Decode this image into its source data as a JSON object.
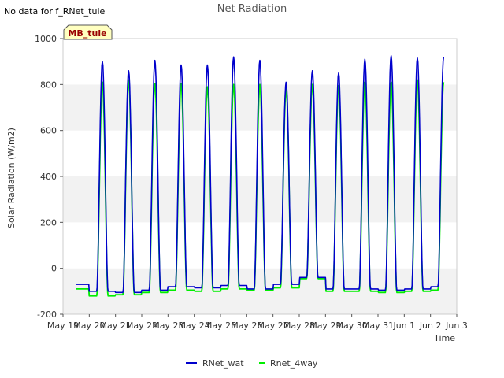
{
  "chart_data": {
    "type": "line",
    "title": "Net Radiation",
    "no_data_note": "No data for f_RNet_tule",
    "site_badge": "MB_tule",
    "xlabel": "Time",
    "ylabel": "Solar Radiation (W/m2)",
    "ylim": [
      -200,
      1000
    ],
    "yticks": [
      -200,
      0,
      200,
      400,
      600,
      800,
      1000
    ],
    "xlim": [
      0,
      15
    ],
    "xtick_labels": [
      "May 19",
      "May 20",
      "May 21",
      "May 22",
      "May 23",
      "May 24",
      "May 25",
      "May 26",
      "May 27",
      "May 28",
      "May 29",
      "May 30",
      "May 31",
      "Jun 1",
      "Jun 2",
      "Jun 3"
    ],
    "grid": "horizontal bands",
    "legend_position": "bottom-center",
    "series": [
      {
        "name": "RNet_wat",
        "color": "#0000cc",
        "night_values": [
          -70,
          -100,
          -105,
          -95,
          -80,
          -85,
          -75,
          -90,
          -70,
          -40,
          -90,
          -90,
          -95,
          -90,
          -80
        ],
        "daily_peaks": [
          900,
          860,
          905,
          885,
          885,
          920,
          905,
          810,
          860,
          850,
          910,
          925,
          915,
          920
        ]
      },
      {
        "name": "Rnet_4way",
        "color": "#00ee00",
        "night_values": [
          -90,
          -120,
          -115,
          -105,
          -95,
          -100,
          -90,
          -95,
          -85,
          -45,
          -100,
          -100,
          -105,
          -100,
          -95
        ],
        "daily_peaks": [
          810,
          820,
          805,
          805,
          790,
          800,
          800,
          780,
          800,
          795,
          810,
          810,
          820,
          810
        ]
      }
    ]
  }
}
